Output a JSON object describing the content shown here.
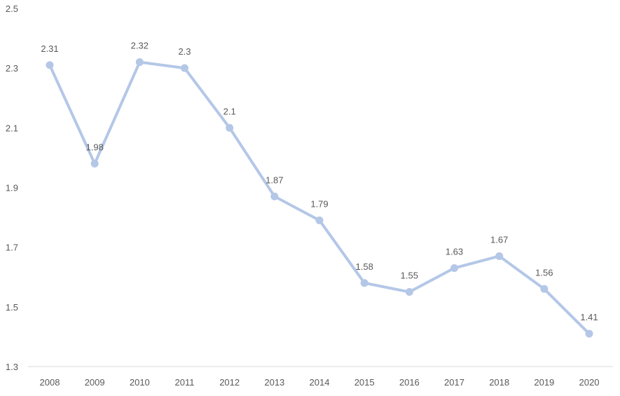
{
  "chart_data": {
    "type": "line",
    "title": "",
    "xlabel": "",
    "ylabel": "",
    "categories": [
      "2008",
      "2009",
      "2010",
      "2011",
      "2012",
      "2013",
      "2014",
      "2015",
      "2016",
      "2017",
      "2018",
      "2019",
      "2020"
    ],
    "series": [
      {
        "name": "",
        "values": [
          2.31,
          1.98,
          2.32,
          2.3,
          2.1,
          1.87,
          1.79,
          1.58,
          1.55,
          1.63,
          1.67,
          1.56,
          1.41
        ],
        "color": "#b4c7e7"
      }
    ],
    "data_labels": [
      "2.31",
      "1.98",
      "2.32",
      "2.3",
      "2.1",
      "1.87",
      "1.79",
      "1.58",
      "1.55",
      "1.63",
      "1.67",
      "1.56",
      "1.41"
    ],
    "ylim": [
      1.3,
      2.5
    ],
    "yticks": [
      "1.3",
      "1.5",
      "1.7",
      "1.9",
      "2.1",
      "2.3",
      "2.5"
    ],
    "grid": false,
    "legend": "none"
  }
}
